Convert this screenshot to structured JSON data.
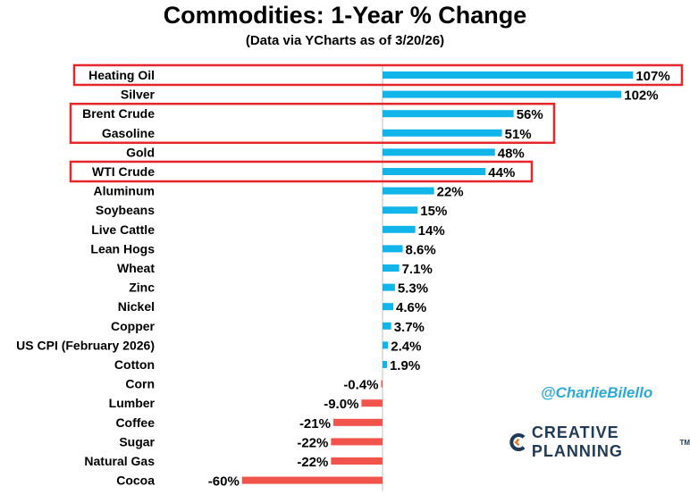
{
  "title": "Commodities: 1-Year % Change",
  "subtitle": "(Data via YCharts as of 3/20/26)",
  "watermark": {
    "handle": "@CharlieBilello",
    "logo_text": "CREATIVE PLANNING",
    "logo_tm": "TM",
    "logo_icon": "creative-planning-c-mark"
  },
  "colors": {
    "positive": "#12b5ea",
    "negative": "#f0544a",
    "highlight": "#e5262b",
    "axis": "#bfbfbf",
    "handle": "#2da9d8",
    "logo": "#1f3b57"
  },
  "chart_data": {
    "type": "bar",
    "orientation": "horizontal",
    "title": "Commodities: 1-Year % Change",
    "subtitle": "(Data via YCharts as of 3/20/26)",
    "unit": "%",
    "categories": [
      "Heating Oil",
      "Silver",
      "Brent Crude",
      "Gasoline",
      "Gold",
      "WTI Crude",
      "Aluminum",
      "Soybeans",
      "Live Cattle",
      "Lean Hogs",
      "Wheat",
      "Zinc",
      "Nickel",
      "Copper",
      "US CPI (February 2026)",
      "Cotton",
      "Corn",
      "Lumber",
      "Coffee",
      "Sugar",
      "Natural Gas",
      "Cocoa"
    ],
    "values": [
      107,
      102,
      56,
      51,
      48,
      44,
      22,
      15,
      14,
      8.6,
      7.1,
      5.3,
      4.6,
      3.7,
      2.4,
      1.9,
      -0.4,
      -9.0,
      -21,
      -22,
      -22,
      -60
    ],
    "labels": [
      "107%",
      "102%",
      "56%",
      "51%",
      "48%",
      "44%",
      "22%",
      "15%",
      "14%",
      "8.6%",
      "7.1%",
      "5.3%",
      "4.6%",
      "3.7%",
      "2.4%",
      "1.9%",
      "-0.4%",
      "-9.0%",
      "-21%",
      "-22%",
      "-22%",
      "-60%"
    ],
    "highlighted_groups": [
      [
        "Heating Oil"
      ],
      [
        "Brent Crude",
        "Gasoline"
      ],
      [
        "WTI Crude"
      ]
    ],
    "grid": false,
    "legend": "none"
  }
}
